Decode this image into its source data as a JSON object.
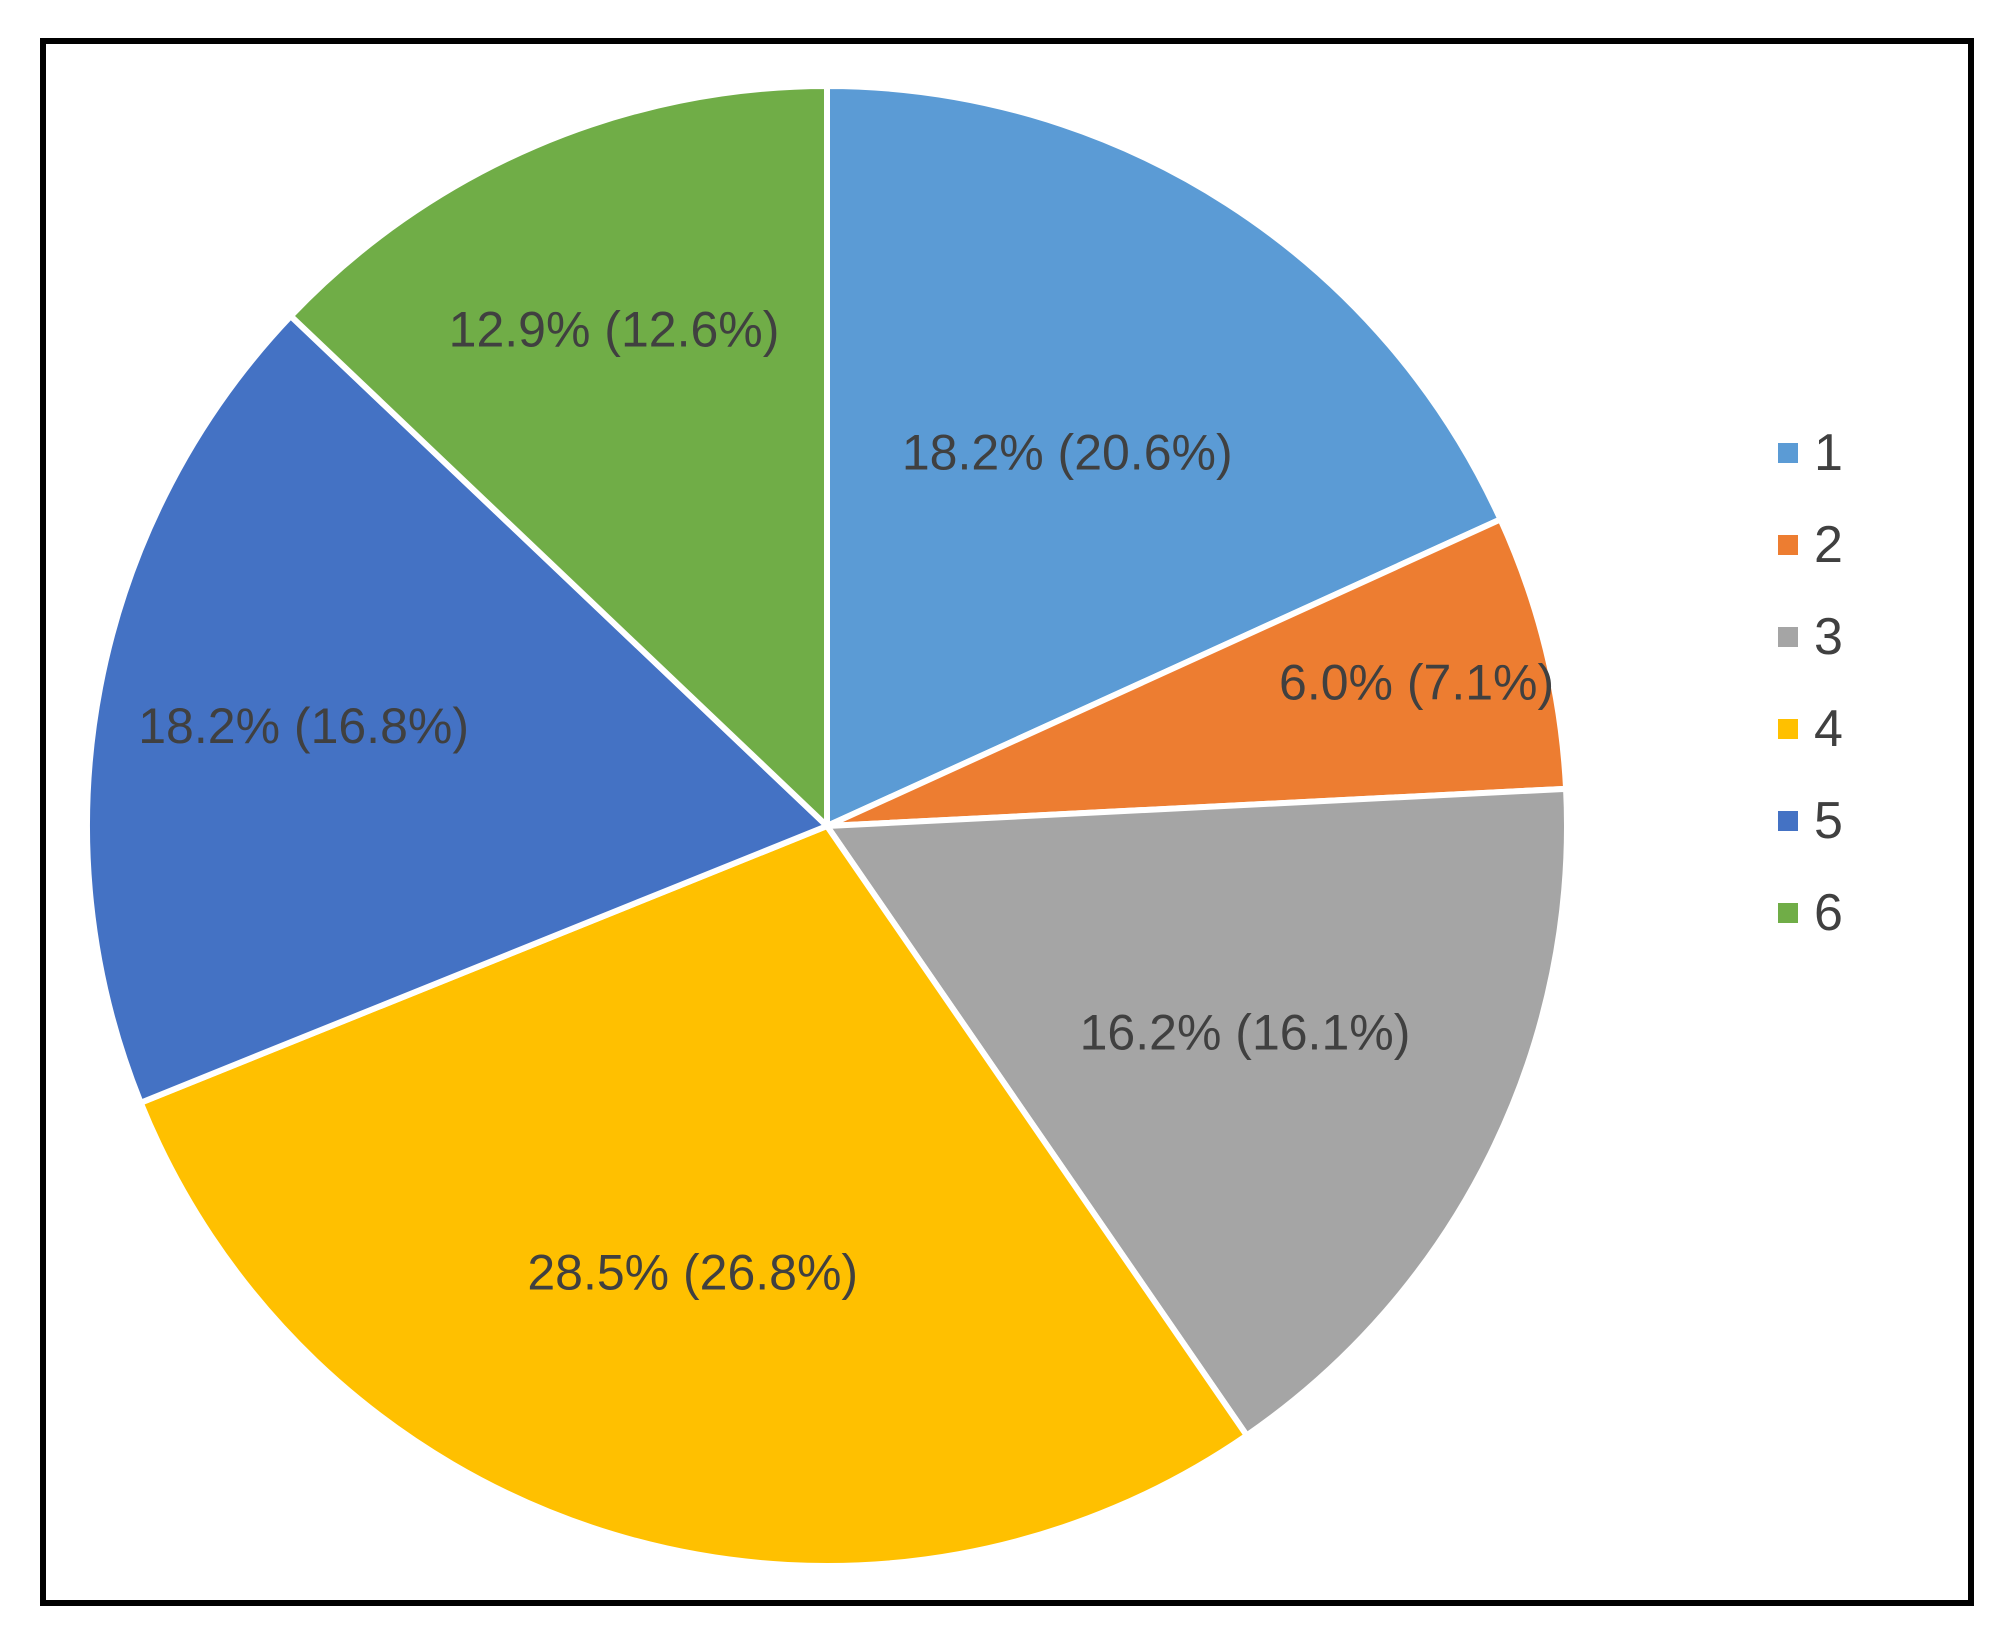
{
  "chart_data": {
    "type": "pie",
    "title": "",
    "legend": "right",
    "slices": [
      {
        "category": "1",
        "value": 18.2,
        "label": "18.2% (20.6%)",
        "color": "#5B9BD5"
      },
      {
        "category": "2",
        "value": 6.0,
        "label": "6.0% (7.1%)",
        "color": "#ED7D31"
      },
      {
        "category": "3",
        "value": 16.2,
        "label": "16.2% (16.1%)",
        "color": "#A5A5A5"
      },
      {
        "category": "4",
        "value": 28.5,
        "label": "28.5% (26.8%)",
        "color": "#FFC000"
      },
      {
        "category": "5",
        "value": 18.2,
        "label": "18.2% (16.8%)",
        "color": "#4472C4"
      },
      {
        "category": "6",
        "value": 12.9,
        "label": "12.9% (12.6%)",
        "color": "#70AD47"
      }
    ]
  }
}
